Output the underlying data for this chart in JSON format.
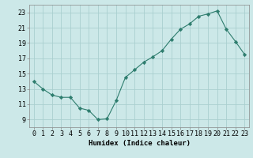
{
  "x": [
    0,
    1,
    2,
    3,
    4,
    5,
    6,
    7,
    8,
    9,
    10,
    11,
    12,
    13,
    14,
    15,
    16,
    17,
    18,
    19,
    20,
    21,
    22,
    23
  ],
  "y": [
    14.0,
    13.0,
    12.2,
    11.9,
    11.9,
    10.5,
    10.2,
    9.0,
    9.1,
    11.5,
    14.5,
    15.5,
    16.5,
    17.2,
    18.0,
    19.5,
    20.8,
    21.5,
    22.5,
    22.8,
    23.2,
    20.8,
    19.2,
    17.5
  ],
  "line_color": "#2e7d6e",
  "marker": "D",
  "marker_size": 2.2,
  "bg_color": "#cce8e8",
  "grid_color": "#aacfcf",
  "xlabel": "Humidex (Indice chaleur)",
  "xlim": [
    -0.5,
    23.5
  ],
  "ylim": [
    8.0,
    24.0
  ],
  "yticks": [
    9,
    11,
    13,
    15,
    17,
    19,
    21,
    23
  ],
  "xticks": [
    0,
    1,
    2,
    3,
    4,
    5,
    6,
    7,
    8,
    9,
    10,
    11,
    12,
    13,
    14,
    15,
    16,
    17,
    18,
    19,
    20,
    21,
    22,
    23
  ],
  "axis_fontsize": 6.5,
  "tick_fontsize": 6.0,
  "line_width": 0.8
}
